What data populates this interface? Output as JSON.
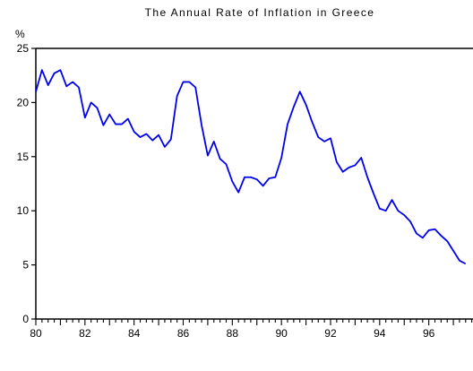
{
  "chart_data": {
    "type": "line",
    "title": "The Annual Rate of Inflation in Greece",
    "ylabel": "%",
    "xlabel": "",
    "x_range": [
      1980,
      1997.8
    ],
    "ylim": [
      0,
      25
    ],
    "y_ticks": [
      0,
      5,
      10,
      15,
      20,
      25
    ],
    "x_ticks": [
      1980,
      1982,
      1984,
      1986,
      1988,
      1990,
      1992,
      1994,
      1996
    ],
    "x_tick_labels": [
      "80",
      "82",
      "84",
      "86",
      "88",
      "90",
      "92",
      "94",
      "96"
    ],
    "grid": false,
    "legend": "none",
    "series": [
      {
        "color": "#0000ee",
        "points": [
          [
            1980.0,
            21.0
          ],
          [
            1980.25,
            23.0
          ],
          [
            1980.5,
            21.6
          ],
          [
            1980.75,
            22.7
          ],
          [
            1981.0,
            23.0
          ],
          [
            1981.25,
            21.5
          ],
          [
            1981.5,
            21.9
          ],
          [
            1981.75,
            21.4
          ],
          [
            1982.0,
            18.6
          ],
          [
            1982.25,
            20.0
          ],
          [
            1982.5,
            19.5
          ],
          [
            1982.75,
            17.9
          ],
          [
            1983.0,
            18.9
          ],
          [
            1983.25,
            18.0
          ],
          [
            1983.5,
            18.0
          ],
          [
            1983.75,
            18.5
          ],
          [
            1984.0,
            17.3
          ],
          [
            1984.25,
            16.8
          ],
          [
            1984.5,
            17.1
          ],
          [
            1984.75,
            16.5
          ],
          [
            1985.0,
            17.0
          ],
          [
            1985.25,
            15.9
          ],
          [
            1985.5,
            16.6
          ],
          [
            1985.75,
            20.6
          ],
          [
            1986.0,
            21.9
          ],
          [
            1986.25,
            21.9
          ],
          [
            1986.5,
            21.4
          ],
          [
            1986.75,
            17.9
          ],
          [
            1987.0,
            15.1
          ],
          [
            1987.25,
            16.4
          ],
          [
            1987.5,
            14.8
          ],
          [
            1987.75,
            14.3
          ],
          [
            1988.0,
            12.7
          ],
          [
            1988.25,
            11.7
          ],
          [
            1988.5,
            13.1
          ],
          [
            1988.75,
            13.1
          ],
          [
            1989.0,
            12.9
          ],
          [
            1989.25,
            12.3
          ],
          [
            1989.5,
            13.0
          ],
          [
            1989.75,
            13.1
          ],
          [
            1990.0,
            14.9
          ],
          [
            1990.25,
            18.0
          ],
          [
            1990.5,
            19.6
          ],
          [
            1990.75,
            21.0
          ],
          [
            1991.0,
            19.8
          ],
          [
            1991.25,
            18.2
          ],
          [
            1991.5,
            16.8
          ],
          [
            1991.75,
            16.4
          ],
          [
            1992.0,
            16.7
          ],
          [
            1992.25,
            14.5
          ],
          [
            1992.5,
            13.6
          ],
          [
            1992.75,
            14.0
          ],
          [
            1993.0,
            14.2
          ],
          [
            1993.25,
            14.9
          ],
          [
            1993.5,
            13.1
          ],
          [
            1993.75,
            11.6
          ],
          [
            1994.0,
            10.2
          ],
          [
            1994.25,
            10.0
          ],
          [
            1994.5,
            11.0
          ],
          [
            1994.75,
            10.0
          ],
          [
            1995.0,
            9.6
          ],
          [
            1995.25,
            9.0
          ],
          [
            1995.5,
            7.9
          ],
          [
            1995.75,
            7.5
          ],
          [
            1996.0,
            8.2
          ],
          [
            1996.25,
            8.3
          ],
          [
            1996.5,
            7.7
          ],
          [
            1996.75,
            7.2
          ],
          [
            1997.0,
            6.3
          ],
          [
            1997.25,
            5.4
          ],
          [
            1997.5,
            5.1
          ]
        ]
      }
    ]
  }
}
